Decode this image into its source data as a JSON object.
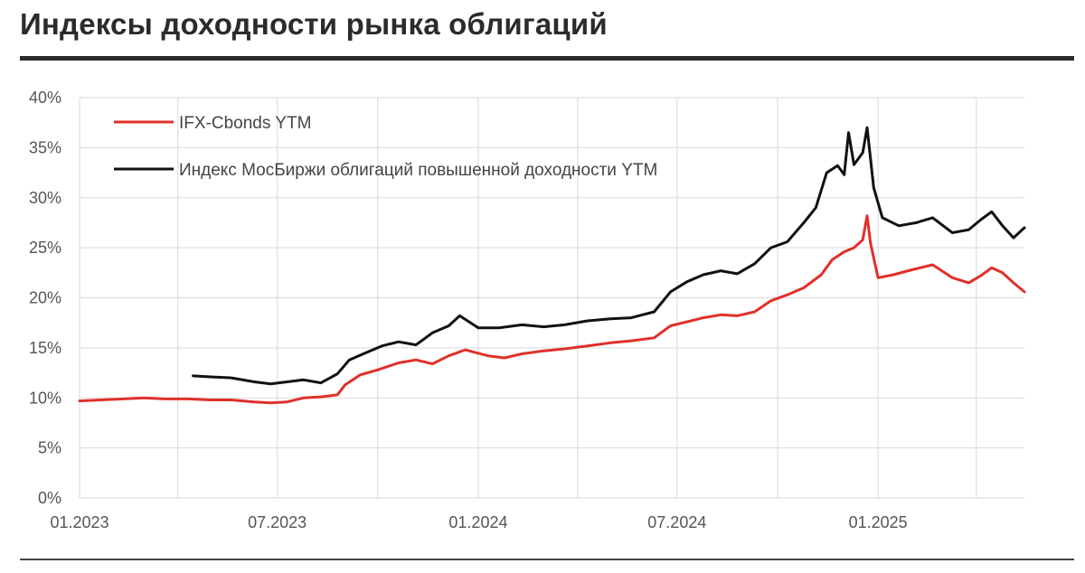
{
  "title": "Индексы доходности рынка облигаций",
  "chart_data": {
    "type": "line",
    "title": "Индексы доходности рынка облигаций",
    "xlabel": "",
    "ylabel": "",
    "x_ticks": [
      "01.2023",
      "07.2023",
      "01.2024",
      "07.2024",
      "01.2025"
    ],
    "y_ticks": [
      "0%",
      "5%",
      "10%",
      "15%",
      "20%",
      "25%",
      "30%",
      "35%",
      "40%"
    ],
    "ylim": [
      0,
      40
    ],
    "xlim": [
      "2023-01-01",
      "2025-05-15"
    ],
    "grid": "vertical",
    "legend_position": "top-left",
    "series": [
      {
        "name": "IFX-Cbonds YTM",
        "color": "#e0302a",
        "points": [
          [
            "2023-01-01",
            9.7
          ],
          [
            "2023-01-20",
            9.8
          ],
          [
            "2023-02-10",
            9.9
          ],
          [
            "2023-03-01",
            10.0
          ],
          [
            "2023-03-20",
            9.9
          ],
          [
            "2023-04-10",
            9.9
          ],
          [
            "2023-05-01",
            9.8
          ],
          [
            "2023-05-20",
            9.8
          ],
          [
            "2023-06-10",
            9.6
          ],
          [
            "2023-06-25",
            9.5
          ],
          [
            "2023-07-10",
            9.6
          ],
          [
            "2023-07-25",
            10.0
          ],
          [
            "2023-08-10",
            10.1
          ],
          [
            "2023-08-25",
            10.3
          ],
          [
            "2023-09-01",
            11.3
          ],
          [
            "2023-09-15",
            12.3
          ],
          [
            "2023-10-01",
            12.8
          ],
          [
            "2023-10-20",
            13.5
          ],
          [
            "2023-11-05",
            13.8
          ],
          [
            "2023-11-20",
            13.4
          ],
          [
            "2023-12-05",
            14.2
          ],
          [
            "2023-12-20",
            14.8
          ],
          [
            "2024-01-10",
            14.2
          ],
          [
            "2024-01-25",
            14.0
          ],
          [
            "2024-02-10",
            14.4
          ],
          [
            "2024-03-01",
            14.7
          ],
          [
            "2024-03-20",
            14.9
          ],
          [
            "2024-04-10",
            15.2
          ],
          [
            "2024-05-01",
            15.5
          ],
          [
            "2024-05-20",
            15.7
          ],
          [
            "2024-06-10",
            16.0
          ],
          [
            "2024-06-25",
            17.2
          ],
          [
            "2024-07-10",
            17.6
          ],
          [
            "2024-07-25",
            18.0
          ],
          [
            "2024-08-10",
            18.3
          ],
          [
            "2024-08-25",
            18.2
          ],
          [
            "2024-09-10",
            18.6
          ],
          [
            "2024-09-25",
            19.7
          ],
          [
            "2024-10-10",
            20.3
          ],
          [
            "2024-10-25",
            21.0
          ],
          [
            "2024-11-10",
            22.3
          ],
          [
            "2024-11-20",
            23.8
          ],
          [
            "2024-12-01",
            24.6
          ],
          [
            "2024-12-10",
            25.0
          ],
          [
            "2024-12-18",
            25.8
          ],
          [
            "2024-12-22",
            28.2
          ],
          [
            "2024-12-25",
            25.5
          ],
          [
            "2025-01-01",
            22.0
          ],
          [
            "2025-01-15",
            22.3
          ],
          [
            "2025-02-01",
            22.8
          ],
          [
            "2025-02-20",
            23.3
          ],
          [
            "2025-03-10",
            22.0
          ],
          [
            "2025-03-25",
            21.5
          ],
          [
            "2025-04-05",
            22.2
          ],
          [
            "2025-04-15",
            23.0
          ],
          [
            "2025-04-25",
            22.5
          ],
          [
            "2025-05-05",
            21.5
          ],
          [
            "2025-05-15",
            20.6
          ]
        ]
      },
      {
        "name": "Индекс МосБиржи облигаций повышенной доходности YTM",
        "color": "#111111",
        "points": [
          [
            "2023-04-15",
            12.2
          ],
          [
            "2023-05-01",
            12.1
          ],
          [
            "2023-05-20",
            12.0
          ],
          [
            "2023-06-10",
            11.6
          ],
          [
            "2023-06-25",
            11.4
          ],
          [
            "2023-07-10",
            11.6
          ],
          [
            "2023-07-25",
            11.8
          ],
          [
            "2023-08-10",
            11.5
          ],
          [
            "2023-08-25",
            12.4
          ],
          [
            "2023-09-05",
            13.8
          ],
          [
            "2023-09-20",
            14.5
          ],
          [
            "2023-10-05",
            15.2
          ],
          [
            "2023-10-20",
            15.6
          ],
          [
            "2023-11-05",
            15.3
          ],
          [
            "2023-11-20",
            16.5
          ],
          [
            "2023-12-05",
            17.2
          ],
          [
            "2023-12-15",
            18.2
          ],
          [
            "2024-01-01",
            17.0
          ],
          [
            "2024-01-20",
            17.0
          ],
          [
            "2024-02-10",
            17.3
          ],
          [
            "2024-03-01",
            17.1
          ],
          [
            "2024-03-20",
            17.3
          ],
          [
            "2024-04-10",
            17.7
          ],
          [
            "2024-05-01",
            17.9
          ],
          [
            "2024-05-20",
            18.0
          ],
          [
            "2024-06-10",
            18.6
          ],
          [
            "2024-06-25",
            20.6
          ],
          [
            "2024-07-10",
            21.6
          ],
          [
            "2024-07-25",
            22.3
          ],
          [
            "2024-08-10",
            22.7
          ],
          [
            "2024-08-25",
            22.4
          ],
          [
            "2024-09-10",
            23.4
          ],
          [
            "2024-09-25",
            25.0
          ],
          [
            "2024-10-10",
            25.6
          ],
          [
            "2024-10-25",
            27.5
          ],
          [
            "2024-11-05",
            29.0
          ],
          [
            "2024-11-15",
            32.5
          ],
          [
            "2024-11-25",
            33.2
          ],
          [
            "2024-12-01",
            32.3
          ],
          [
            "2024-12-05",
            36.5
          ],
          [
            "2024-12-10",
            33.3
          ],
          [
            "2024-12-18",
            34.5
          ],
          [
            "2024-12-22",
            37.0
          ],
          [
            "2024-12-28",
            31.0
          ],
          [
            "2025-01-05",
            28.0
          ],
          [
            "2025-01-20",
            27.2
          ],
          [
            "2025-02-05",
            27.5
          ],
          [
            "2025-02-20",
            28.0
          ],
          [
            "2025-03-10",
            26.5
          ],
          [
            "2025-03-25",
            26.8
          ],
          [
            "2025-04-05",
            27.8
          ],
          [
            "2025-04-15",
            28.6
          ],
          [
            "2025-04-25",
            27.2
          ],
          [
            "2025-05-05",
            26.0
          ],
          [
            "2025-05-15",
            27.0
          ]
        ]
      }
    ]
  }
}
